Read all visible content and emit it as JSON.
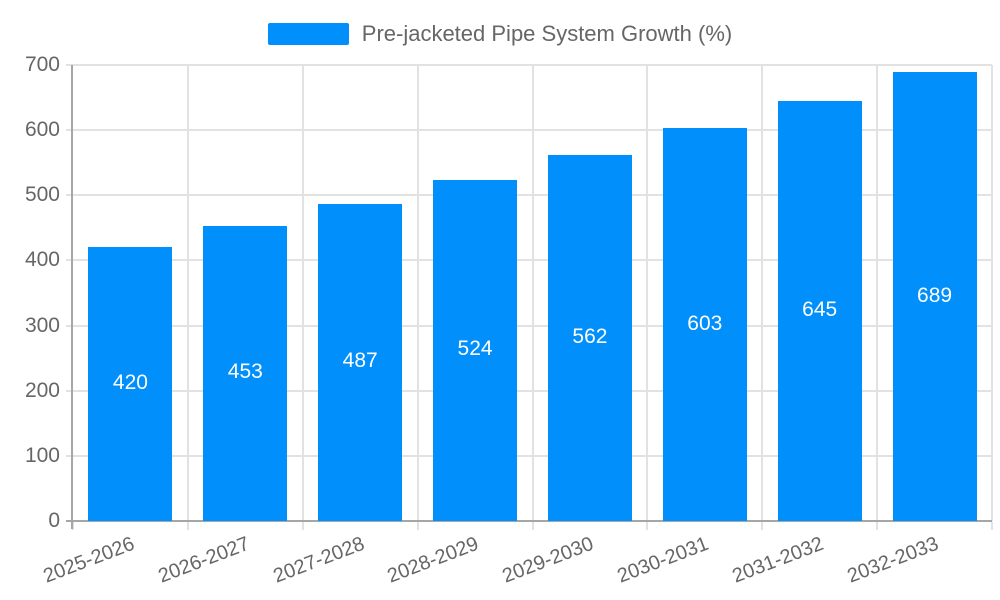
{
  "chart_data": {
    "type": "bar",
    "title": "Pre-jacketed Pipe System Growth (%)",
    "categories": [
      "2025-2026",
      "2026-2027",
      "2027-2028",
      "2028-2029",
      "2029-2030",
      "2030-2031",
      "2031-2032",
      "2032-2033"
    ],
    "values": [
      420,
      453,
      487,
      524,
      562,
      603,
      645,
      689
    ],
    "xlabel": "",
    "ylabel": "",
    "ylim": [
      0,
      700
    ],
    "ytick_step": 100,
    "ytick_labels": [
      "0",
      "100",
      "200",
      "300",
      "400",
      "500",
      "600",
      "700"
    ],
    "grid": true,
    "legend_position": "top",
    "value_labels_inside_bars": true,
    "colors": {
      "bar": "#008FFB",
      "value_label": "#ffffff",
      "axis_text": "#666666",
      "gridline": "#e2e2e2",
      "axis_line": "#a6a6a6",
      "background": "#ffffff"
    }
  }
}
